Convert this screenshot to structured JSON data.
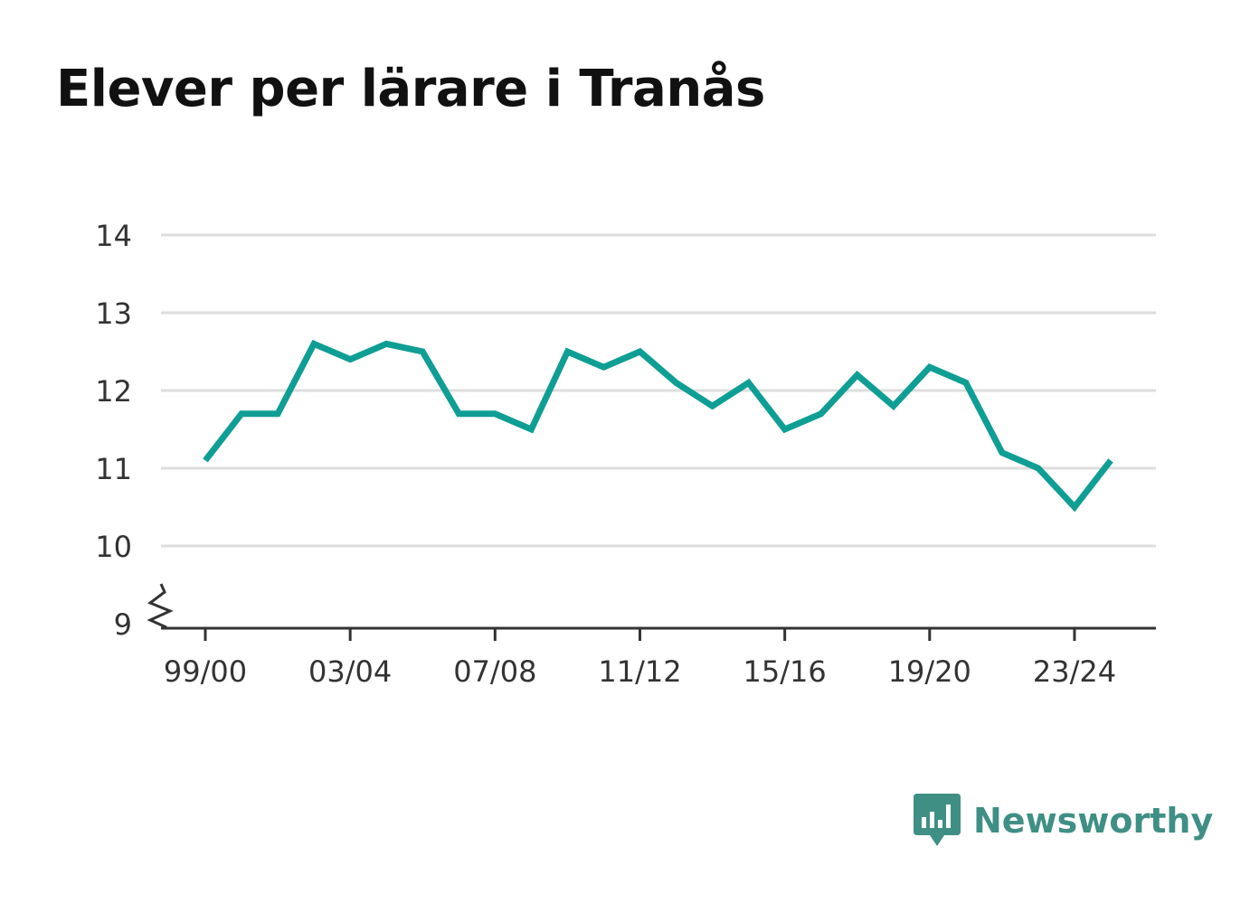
{
  "colors": {
    "line": "#0f9e94",
    "grid": "#dddddd",
    "axis": "#333333",
    "brand": "#3f8f85"
  },
  "chart_data": {
    "type": "line",
    "title": "Elever per lärare i Tranås",
    "xlabel": "",
    "ylabel": "",
    "x": [
      "99/00",
      "00/01",
      "01/02",
      "02/03",
      "03/04",
      "04/05",
      "05/06",
      "06/07",
      "07/08",
      "08/09",
      "09/10",
      "10/11",
      "11/12",
      "12/13",
      "13/14",
      "14/15",
      "15/16",
      "16/17",
      "17/18",
      "18/19",
      "19/20",
      "20/21",
      "21/22",
      "22/23",
      "23/24",
      "24/25"
    ],
    "series": [
      {
        "values": [
          11.1,
          11.7,
          11.7,
          12.6,
          12.4,
          12.6,
          12.5,
          11.7,
          11.7,
          11.5,
          12.5,
          12.3,
          12.5,
          12.1,
          11.8,
          12.1,
          11.5,
          11.7,
          12.2,
          11.8,
          12.3,
          12.1,
          11.2,
          11.0,
          10.5,
          11.1
        ]
      }
    ],
    "x_tick_labels": [
      "99/00",
      "03/04",
      "07/08",
      "11/12",
      "15/16",
      "19/20",
      "23/24"
    ],
    "y_ticks": [
      9,
      10,
      11,
      12,
      13,
      14
    ],
    "ylim": [
      9,
      14
    ],
    "axis_break": true,
    "grid": true,
    "legend": "none"
  },
  "logo": {
    "text": "Newsworthy",
    "icon": "bar-chart-speech-bubble-icon"
  }
}
